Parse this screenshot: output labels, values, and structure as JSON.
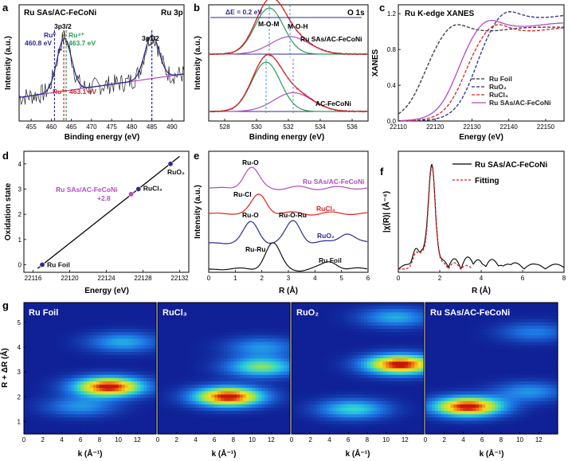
{
  "figure": {
    "panels": {
      "a": {
        "label": "a",
        "title": "Ru SAs/AC-FeCoNi",
        "tag": "Ru 3p",
        "xlabel": "Binding energy (eV)",
        "ylabel": "Intensity (a.u.)",
        "xticks": [
          "455",
          "460",
          "465",
          "470",
          "475",
          "480",
          "485",
          "490"
        ],
        "annotations": {
          "ru0": "Ru⁰",
          "ru0_energy": "460.8 eV",
          "ru4": "Ru⁴⁺",
          "ru4_energy": "463.7 eV",
          "ru3": "Ru³⁺ 463.1 eV",
          "p32": "3p3/2",
          "p12": "3p1/2"
        }
      },
      "b": {
        "label": "b",
        "tag": "O 1s",
        "xlabel": "Binding energy (eV)",
        "ylabel": "Intensity (a.u.)",
        "xticks": [
          "528",
          "530",
          "532",
          "534",
          "536"
        ],
        "annotations": {
          "delta": "ΔE = 0.2 eV",
          "mom": "M-O-M",
          "moh": "M-O-H",
          "top_sample": "Ru SAs/AC-FeCoNi",
          "bottom_sample": "AC-FeCoNi"
        }
      },
      "c": {
        "label": "c",
        "title": "Ru K-edge XANES",
        "xlabel": "Energy (eV)",
        "ylabel": "XANES",
        "xticks": [
          "22110",
          "22120",
          "22130",
          "22140",
          "22150"
        ],
        "yticks": [
          "0.0",
          "0.4",
          "0.8",
          "1.2"
        ]
      },
      "d": {
        "label": "d",
        "xlabel": "Energy (eV)",
        "ylabel": "Oxidation state",
        "xticks": [
          "22116",
          "22120",
          "22124",
          "22128",
          "22132"
        ],
        "yticks": [
          "0",
          "1",
          "2",
          "3",
          "4"
        ],
        "annotations": {
          "sample": "Ru SAs/AC-FeCoNi",
          "value": "+2.8"
        }
      },
      "e": {
        "label": "e",
        "xlabel": "R (Å)",
        "ylabel": "Intensity (a.u.)",
        "xticks": [
          "0",
          "1",
          "2",
          "3",
          "4",
          "5",
          "6"
        ],
        "annotations": {
          "ruo1": "Ru-O",
          "rucl": "Ru-Cl",
          "ruo2": "Ru-O",
          "ruoru": "Ru-O-Ru",
          "ruru": "Ru-Ru"
        }
      },
      "f": {
        "label": "f",
        "xlabel": "R (Å)",
        "ylabel": "|χ(R)| (Å⁻⁴)",
        "xticks": [
          "0",
          "2",
          "4",
          "6",
          "8"
        ]
      },
      "g": {
        "label": "g",
        "ylabel": "R + ΔR (Å)",
        "xlabel": "k (Å⁻¹)",
        "yticks": [
          "1",
          "2",
          "3",
          "4",
          "5"
        ],
        "xticks": [
          "0",
          "2",
          "4",
          "6",
          "8",
          "10",
          "12"
        ],
        "titles": [
          "Ru Foil",
          "RuCl₃",
          "RuO₂",
          "Ru SAs/AC-FeCoNi"
        ]
      }
    }
  },
  "colors": {
    "navy": "#2b2c8f",
    "red": "#e02020",
    "green": "#2b9a55",
    "purple": "#b24bc5",
    "black": "#111111",
    "gray": "#777777"
  },
  "chart_data": [
    {
      "type": "line",
      "panel": "a",
      "title": "Ru SAs/AC-FeCoNi",
      "xlabel": "Binding energy (eV)",
      "ylabel": "Intensity (a.u.)",
      "xlim": [
        452,
        493
      ],
      "x_reversed": false,
      "peaks": [
        {
          "name": "Ru⁰",
          "center": 460.8,
          "height": 0.5
        },
        {
          "name": "Ru³⁺",
          "center": 463.1,
          "height": 0.55
        },
        {
          "name": "Ru⁴⁺",
          "center": 463.7,
          "height": 0.45
        },
        {
          "name": "3p1/2",
          "center": 485.0,
          "height": 0.45
        }
      ]
    },
    {
      "type": "line",
      "panel": "b",
      "xlabel": "Binding energy (eV)",
      "ylabel": "Intensity (a.u.)",
      "xlim": [
        527,
        537
      ],
      "series": [
        {
          "name": "Ru SAs/AC-FeCoNi",
          "components": [
            {
              "name": "M-O-M",
              "center": 530.8,
              "width": 0.9
            },
            {
              "name": "M-O-H",
              "center": 532.1,
              "width": 1.2
            }
          ]
        },
        {
          "name": "AC-FeCoNi",
          "components": [
            {
              "name": "M-O-M",
              "center": 530.6,
              "width": 0.9
            },
            {
              "name": "M-O-H",
              "center": 532.3,
              "width": 1.2
            }
          ]
        }
      ]
    },
    {
      "type": "line",
      "panel": "c",
      "title": "Ru K-edge XANES",
      "xlabel": "Energy (eV)",
      "ylabel": "XANES",
      "xlim": [
        22110,
        22155
      ],
      "ylim": [
        0.0,
        1.3
      ],
      "legend": "bottom-right",
      "series": [
        {
          "name": "Ru Foil",
          "edge": 22117,
          "plateau": 1.05
        },
        {
          "name": "RuO₂",
          "edge": 22131,
          "plateau": 1.2
        },
        {
          "name": "RuCl₃",
          "edge": 22128,
          "plateau": 1.05
        },
        {
          "name": "Ru SAs/AC-FeCoNi",
          "edge": 22126,
          "plateau": 1.1
        }
      ]
    },
    {
      "type": "scatter",
      "panel": "d",
      "xlabel": "Energy (eV)",
      "ylabel": "Oxidation state",
      "xlim": [
        22115,
        22133
      ],
      "ylim": [
        -0.3,
        4.5
      ],
      "points": [
        {
          "label": "Ru Foil",
          "x": 22117.0,
          "y": 0
        },
        {
          "label": "RuCl₃",
          "x": 22127.5,
          "y": 3
        },
        {
          "label": "RuO₂",
          "x": 22131.0,
          "y": 4
        },
        {
          "label": "Ru SAs/AC-FeCoNi",
          "x": 22126.7,
          "y": 2.8
        }
      ]
    },
    {
      "type": "line",
      "panel": "e",
      "xlabel": "R (Å)",
      "ylabel": "Intensity (a.u.)",
      "xlim": [
        0,
        6
      ],
      "series": [
        {
          "name": "Ru SAs/AC-FeCoNi",
          "peaks": [
            {
              "center": 1.6,
              "height": 0.9
            }
          ]
        },
        {
          "name": "RuCl₃",
          "peaks": [
            {
              "center": 1.9,
              "height": 0.9
            }
          ]
        },
        {
          "name": "RuO₂",
          "peaks": [
            {
              "center": 1.6,
              "height": 0.8
            },
            {
              "center": 3.2,
              "height": 0.85
            },
            {
              "center": 5.2,
              "height": 0.4
            }
          ]
        },
        {
          "name": "Ru Foil",
          "peaks": [
            {
              "center": 2.4,
              "height": 1.0
            },
            {
              "center": 4.6,
              "height": 0.3
            }
          ]
        }
      ]
    },
    {
      "type": "line",
      "panel": "f",
      "xlabel": "R (Å)",
      "ylabel": "|χ(R)| (Å⁻⁴)",
      "xlim": [
        0,
        8
      ],
      "legend": "top-right",
      "series": [
        {
          "name": "Ru SAs/AC-FeCoNi",
          "main_peak": 1.6
        },
        {
          "name": "Fitting",
          "main_peak": 1.6
        }
      ]
    },
    {
      "type": "heatmap",
      "panel": "g",
      "xlabel": "k (Å⁻¹)",
      "ylabel": "R + ΔR (Å)",
      "xlim": [
        0,
        14
      ],
      "ylim": [
        0.5,
        5.8
      ],
      "maps": [
        {
          "name": "Ru Foil",
          "spots": [
            {
              "k": 9.0,
              "r": 2.4,
              "amp": 1.0
            },
            {
              "k": 10.5,
              "r": 4.2,
              "amp": 0.35
            },
            {
              "k": 6.0,
              "r": 1.6,
              "amp": 0.3
            }
          ]
        },
        {
          "name": "RuCl₃",
          "spots": [
            {
              "k": 7.5,
              "r": 2.0,
              "amp": 1.0
            },
            {
              "k": 11.0,
              "r": 3.2,
              "amp": 0.55
            },
            {
              "k": 11.0,
              "r": 4.0,
              "amp": 0.3
            }
          ]
        },
        {
          "name": "RuO₂",
          "spots": [
            {
              "k": 11.5,
              "r": 3.3,
              "amp": 1.0
            },
            {
              "k": 6.5,
              "r": 1.5,
              "amp": 0.45
            },
            {
              "k": 11.0,
              "r": 5.2,
              "amp": 0.35
            }
          ]
        },
        {
          "name": "Ru SAs/AC-FeCoNi",
          "spots": [
            {
              "k": 4.5,
              "r": 1.6,
              "amp": 1.0
            },
            {
              "k": 11.0,
              "r": 2.2,
              "amp": 0.3
            },
            {
              "k": 11.5,
              "r": 4.6,
              "amp": 0.25
            }
          ]
        }
      ]
    }
  ]
}
